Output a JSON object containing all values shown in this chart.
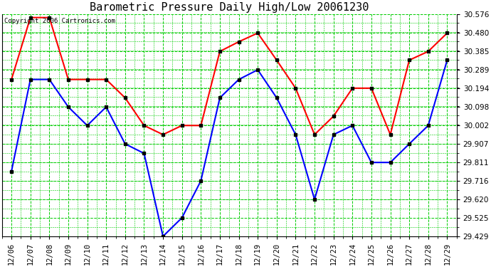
{
  "title": "Barometric Pressure Daily High/Low 20061230",
  "copyright": "Copyright 2006 Cartronics.com",
  "background_color": "#ffffff",
  "plot_background": "#ffffff",
  "grid_color": "#00cc00",
  "dates": [
    "12/06",
    "12/07",
    "12/08",
    "12/09",
    "12/10",
    "12/11",
    "12/12",
    "12/13",
    "12/14",
    "12/15",
    "12/16",
    "12/17",
    "12/18",
    "12/19",
    "12/20",
    "12/21",
    "12/22",
    "12/23",
    "12/24",
    "12/25",
    "12/26",
    "12/27",
    "12/28",
    "12/29"
  ],
  "high_values": [
    30.24,
    30.56,
    30.56,
    30.24,
    30.24,
    30.24,
    30.145,
    30.002,
    29.955,
    30.002,
    30.002,
    30.385,
    30.435,
    30.48,
    30.34,
    30.195,
    29.955,
    30.05,
    30.195,
    30.195,
    29.955,
    30.34,
    30.385,
    30.48
  ],
  "low_values": [
    29.765,
    30.24,
    30.24,
    30.098,
    30.002,
    30.098,
    29.907,
    29.858,
    29.429,
    29.525,
    29.716,
    30.145,
    30.24,
    30.29,
    30.145,
    29.955,
    29.62,
    29.955,
    30.002,
    29.811,
    29.811,
    29.907,
    30.002,
    30.34
  ],
  "high_color": "#ff0000",
  "low_color": "#0000ff",
  "marker_color": "#000000",
  "marker_size": 3,
  "line_width": 1.5,
  "ylim_min": 29.429,
  "ylim_max": 30.576,
  "yticks": [
    29.429,
    29.525,
    29.62,
    29.716,
    29.811,
    29.907,
    30.002,
    30.098,
    30.194,
    30.289,
    30.385,
    30.48,
    30.576
  ],
  "title_fontsize": 11,
  "copyright_fontsize": 6.5,
  "tick_fontsize": 7.5,
  "fig_width": 6.9,
  "fig_height": 3.75,
  "dpi": 100
}
